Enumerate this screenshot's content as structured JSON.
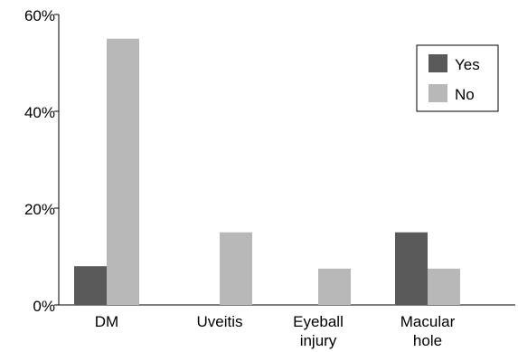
{
  "chart_data": {
    "type": "bar",
    "categories": [
      [
        "DM"
      ],
      [
        "Uveitis"
      ],
      [
        "Eyeball",
        "injury"
      ],
      [
        "Macular",
        "hole"
      ]
    ],
    "series": [
      {
        "name": "Yes",
        "values": [
          8,
          0,
          0,
          15
        ],
        "color": "#595959"
      },
      {
        "name": "No",
        "values": [
          55,
          15,
          7.5,
          7.5
        ],
        "color": "#b8b8b8"
      }
    ],
    "y_ticks": [
      "0%",
      "20%",
      "40%",
      "60%"
    ],
    "y_tick_values": [
      0,
      20,
      40,
      60
    ],
    "ylim": [
      0,
      60
    ],
    "unit": "%",
    "grid": false,
    "legend_position": "top-right"
  }
}
